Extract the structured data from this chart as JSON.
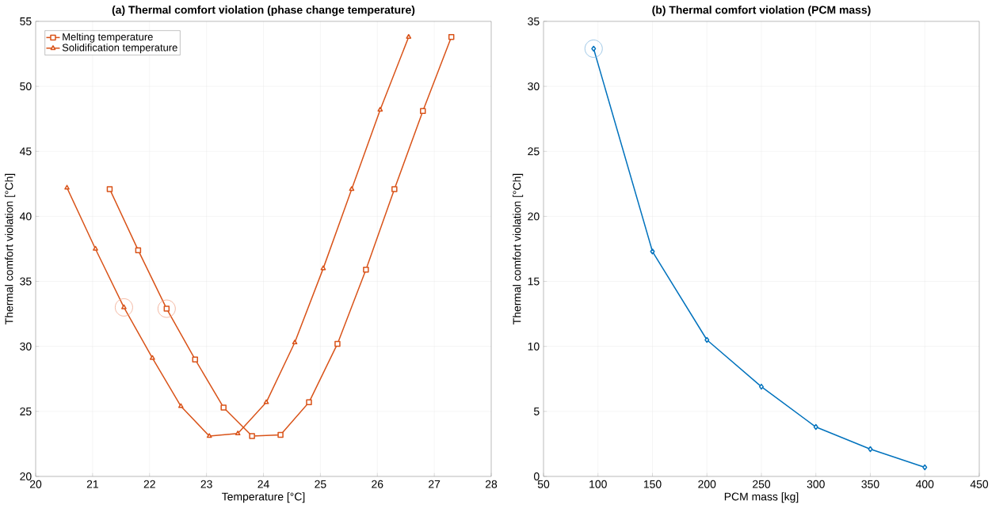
{
  "chart_data": [
    {
      "type": "line",
      "title": "(a) Thermal comfort violation (phase change temperature)",
      "xlabel": "Temperature [°C]",
      "ylabel": "Thermal comfort violation [°Ch]",
      "xlim": [
        20,
        28
      ],
      "xticks": [
        20,
        21,
        22,
        23,
        24,
        25,
        26,
        27,
        28
      ],
      "ylim": [
        20,
        55
      ],
      "yticks": [
        20,
        25,
        30,
        35,
        40,
        45,
        50,
        55
      ],
      "grid": true,
      "legend": "top left",
      "series": [
        {
          "name": "Melting temperature",
          "color": "#d95319",
          "marker": "square",
          "x": [
            21.3,
            21.8,
            22.3,
            22.8,
            23.3,
            23.8,
            24.3,
            24.8,
            25.3,
            25.8,
            26.3,
            26.8,
            27.3
          ],
          "values": [
            42.1,
            37.4,
            32.9,
            29.0,
            25.3,
            23.1,
            23.2,
            25.7,
            30.2,
            35.9,
            42.1,
            48.1,
            53.8
          ]
        },
        {
          "name": "Solidification temperature",
          "color": "#d95319",
          "marker": "triangle",
          "x": [
            20.55,
            21.05,
            21.55,
            22.05,
            22.55,
            23.05,
            23.55,
            24.05,
            24.55,
            25.05,
            25.55,
            26.05,
            26.55
          ],
          "values": [
            42.2,
            37.5,
            33.0,
            29.1,
            25.4,
            23.1,
            23.3,
            25.7,
            30.3,
            36.0,
            42.1,
            48.2,
            53.8
          ]
        },
        {
          "type": "scatter",
          "color": "#f0a589",
          "marker": "circle",
          "x": [
            21.55,
            22.3
          ],
          "values": [
            33.0,
            32.9
          ]
        }
      ]
    },
    {
      "type": "line",
      "title": "(b) Thermal comfort violation (PCM mass)",
      "xlabel": "PCM mass [kg]",
      "ylabel": "Thermal comfort violation [°Ch]",
      "xlim": [
        50,
        450
      ],
      "xticks": [
        50,
        100,
        150,
        200,
        250,
        300,
        350,
        400,
        450
      ],
      "ylim": [
        0,
        35
      ],
      "yticks": [
        0,
        5,
        10,
        15,
        20,
        25,
        30,
        35
      ],
      "grid": true,
      "series": [
        {
          "color": "#0072bd",
          "marker": "diamond",
          "x": [
            96,
            150,
            200,
            250,
            300,
            350,
            400
          ],
          "values": [
            32.9,
            17.3,
            10.5,
            6.9,
            3.8,
            2.1,
            0.7
          ]
        },
        {
          "type": "scatter",
          "color": "#85b9e0",
          "marker": "circle",
          "x": [
            96
          ],
          "values": [
            32.9
          ]
        }
      ]
    }
  ]
}
